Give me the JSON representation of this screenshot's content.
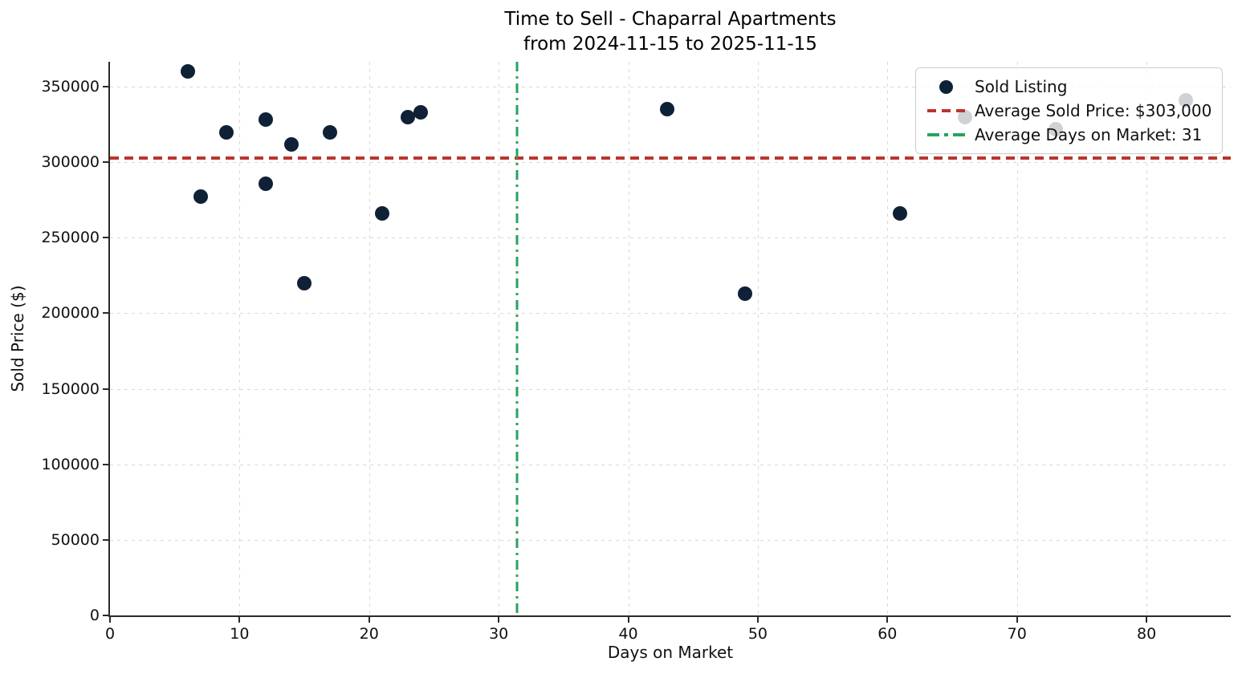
{
  "title": {
    "line1": "Time to Sell - Chaparral Apartments",
    "line2": "from 2024-11-15 to 2025-11-15"
  },
  "axes": {
    "x_label": "Days on Market",
    "y_label": "Sold Price ($)",
    "x_ticks": [
      0,
      10,
      20,
      30,
      40,
      50,
      60,
      70,
      80
    ],
    "y_ticks": [
      0,
      50000,
      100000,
      150000,
      200000,
      250000,
      300000,
      350000
    ]
  },
  "chart_data": {
    "type": "scatter",
    "title": "Time to Sell - Chaparral Apartments from 2024-11-15 to 2025-11-15",
    "xlabel": "Days on Market",
    "ylabel": "Sold Price ($)",
    "xlim": [
      0,
      86.5
    ],
    "ylim": [
      0,
      366500
    ],
    "grid": true,
    "grid_style": "dashed",
    "legend_position": "upper right",
    "series": [
      {
        "name": "Sold Listing",
        "type": "scatter",
        "points": [
          [
            6,
            360000
          ],
          [
            7,
            277000
          ],
          [
            9,
            320000
          ],
          [
            12,
            328000
          ],
          [
            12,
            286000
          ],
          [
            14,
            312000
          ],
          [
            15,
            220000
          ],
          [
            17,
            320000
          ],
          [
            21,
            266000
          ],
          [
            23,
            330000
          ],
          [
            24,
            333000
          ],
          [
            43,
            335000
          ],
          [
            49,
            213000
          ],
          [
            61,
            266000
          ],
          [
            66,
            330000
          ],
          [
            73,
            322000
          ],
          [
            83,
            341000
          ]
        ]
      },
      {
        "name": "Average Sold Price: $303,000",
        "type": "hline",
        "value": 303000,
        "linestyle": "dashed"
      },
      {
        "name": "Average Days on Market: 31",
        "type": "vline",
        "value": 31.4,
        "linestyle": "dashdot"
      }
    ]
  },
  "legend": {
    "items": [
      {
        "marker": "dot",
        "label": "Sold Listing"
      },
      {
        "marker": "dashed",
        "label": "Average Sold Price: $303,000"
      },
      {
        "marker": "dashdot",
        "label": "Average Days on Market: 31"
      }
    ]
  },
  "colors": {
    "dot": "#0e2136",
    "avg_price_line": "#bb352e",
    "avg_days_line": "#28a35e",
    "grid": "#d9d9d9",
    "spine": "#2a2a2a",
    "text": "#111111"
  }
}
